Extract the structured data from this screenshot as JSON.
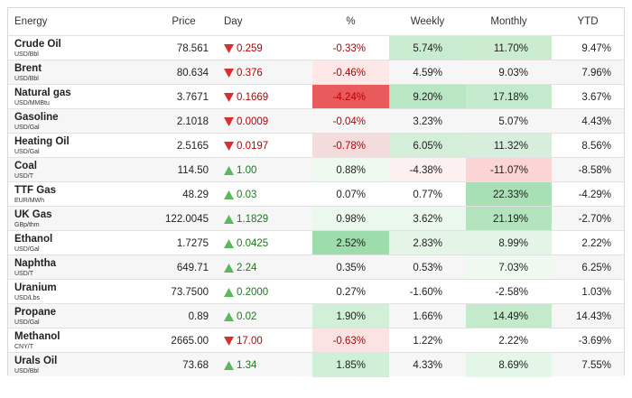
{
  "header": [
    "Energy",
    "Price",
    "Day",
    "%",
    "Weekly",
    "Monthly",
    "YTD"
  ],
  "rows": [
    {
      "name": "Crude Oil",
      "unit": "USD/Bbl",
      "price": "78.561",
      "day": "0.259",
      "dir": "down",
      "pct": "-0.33%",
      "weekly": "5.74%",
      "monthly": "11.70%",
      "ytd": "9.47%",
      "bg": {
        "weekly": "#c9ecd0",
        "monthly": "#cbeccf"
      }
    },
    {
      "name": "Brent",
      "unit": "USD/Bbl",
      "price": "80.634",
      "day": "0.376",
      "dir": "down",
      "pct": "-0.46%",
      "weekly": "4.59%",
      "monthly": "9.03%",
      "ytd": "7.96%",
      "bg": {
        "pct": "#fde7e7"
      }
    },
    {
      "name": "Natural gas",
      "unit": "USD/MMBtu",
      "price": "3.7671",
      "day": "0.1669",
      "dir": "down",
      "pct": "-4.24%",
      "weekly": "9.20%",
      "monthly": "17.18%",
      "ytd": "3.67%",
      "bg": {
        "pct": "#e95a5d",
        "weekly": "#b9e6c3",
        "monthly": "#c3eacd"
      }
    },
    {
      "name": "Gasoline",
      "unit": "USD/Gal",
      "price": "2.1018",
      "day": "0.0009",
      "dir": "down",
      "pct": "-0.04%",
      "weekly": "3.23%",
      "monthly": "5.07%",
      "ytd": "4.43%",
      "bg": {}
    },
    {
      "name": "Heating Oil",
      "unit": "USD/Gal",
      "price": "2.5165",
      "day": "0.0197",
      "dir": "down",
      "pct": "-0.78%",
      "weekly": "6.05%",
      "monthly": "11.32%",
      "ytd": "8.56%",
      "bg": {
        "pct": "#f4dcdc",
        "weekly": "#d3eed9",
        "monthly": "#d8eedc"
      }
    },
    {
      "name": "Coal",
      "unit": "USD/T",
      "price": "114.50",
      "day": "1.00",
      "dir": "up",
      "pct": "0.88%",
      "weekly": "-4.38%",
      "monthly": "-11.07%",
      "ytd": "-8.58%",
      "bg": {
        "pct": "#eefaf0",
        "weekly": "#fdf0f0",
        "monthly": "#fbd5d5"
      }
    },
    {
      "name": "TTF Gas",
      "unit": "EUR/MWh",
      "price": "48.29",
      "day": "0.03",
      "dir": "up",
      "pct": "0.07%",
      "weekly": "0.77%",
      "monthly": "22.33%",
      "ytd": "-4.29%",
      "bg": {
        "monthly": "#a8e0b5"
      }
    },
    {
      "name": "UK Gas",
      "unit": "GBp/thm",
      "price": "122.0045",
      "day": "1.1829",
      "dir": "up",
      "pct": "0.98%",
      "weekly": "3.62%",
      "monthly": "21.19%",
      "ytd": "-2.70%",
      "bg": {
        "pct": "#ebf8ed",
        "weekly": "#ebf8ed",
        "monthly": "#b3e4be"
      }
    },
    {
      "name": "Ethanol",
      "unit": "USD/Gal",
      "price": "1.7275",
      "day": "0.0425",
      "dir": "up",
      "pct": "2.52%",
      "weekly": "2.83%",
      "monthly": "8.99%",
      "ytd": "2.22%",
      "bg": {
        "pct": "#9ddcab",
        "weekly": "#e4f4e7",
        "monthly": "#e4f4e7"
      }
    },
    {
      "name": "Naphtha",
      "unit": "USD/T",
      "price": "649.71",
      "day": "2.24",
      "dir": "up",
      "pct": "0.35%",
      "weekly": "0.53%",
      "monthly": "7.03%",
      "ytd": "6.25%",
      "bg": {
        "monthly": "#eefaf0"
      }
    },
    {
      "name": "Uranium",
      "unit": "USD/Lbs",
      "price": "73.7500",
      "day": "0.2000",
      "dir": "up",
      "pct": "0.27%",
      "weekly": "-1.60%",
      "monthly": "-2.58%",
      "ytd": "1.03%",
      "bg": {}
    },
    {
      "name": "Propane",
      "unit": "USD/Gal",
      "price": "0.89",
      "day": "0.02",
      "dir": "up",
      "pct": "1.90%",
      "weekly": "1.66%",
      "monthly": "14.49%",
      "ytd": "14.43%",
      "bg": {
        "pct": "#d2f0d8",
        "monthly": "#c3ebcb"
      }
    },
    {
      "name": "Methanol",
      "unit": "CNY/T",
      "price": "2665.00",
      "day": "17.00",
      "dir": "down",
      "pct": "-0.63%",
      "weekly": "1.22%",
      "monthly": "2.22%",
      "ytd": "-3.69%",
      "bg": {
        "pct": "#fbe3e3"
      }
    },
    {
      "name": "Urals Oil",
      "unit": "USD/Bbl",
      "price": "73.68",
      "day": "1.34",
      "dir": "up",
      "pct": "1.85%",
      "weekly": "4.33%",
      "monthly": "8.69%",
      "ytd": "7.55%",
      "bg": {
        "pct": "#cfefd6",
        "monthly": "#e4f6e8"
      }
    }
  ]
}
